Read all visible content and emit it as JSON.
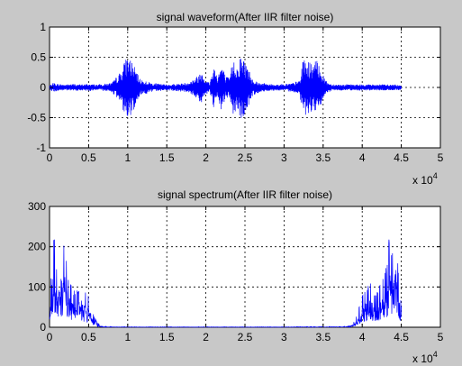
{
  "figure": {
    "background": "#c8c8c8",
    "axes_background": "#ffffff",
    "series_color": "#0000ff"
  },
  "chart_data": [
    {
      "type": "line",
      "title": "signal waveform(After IIR filter noise)",
      "xlabel": "",
      "ylabel": "",
      "xlim": [
        0,
        50000
      ],
      "ylim": [
        -1,
        1
      ],
      "xticks": [
        0,
        5000,
        10000,
        15000,
        20000,
        25000,
        30000,
        35000,
        40000,
        45000,
        50000
      ],
      "xtick_labels": [
        "0",
        "0.5",
        "1",
        "1.5",
        "2",
        "2.5",
        "3",
        "3.5",
        "4",
        "4.5",
        "5"
      ],
      "yticks": [
        -1,
        -0.5,
        0,
        0.5,
        1
      ],
      "ytick_labels": [
        "-1",
        "-0.5",
        "0",
        "0.5",
        "1"
      ],
      "x_multiplier": "x 10",
      "x_multiplier_exp": "4",
      "grid": true,
      "series": [
        {
          "x": [
            0,
            500,
            1000,
            2000,
            3000,
            4000,
            5000,
            6000,
            7000,
            8000,
            9000,
            9500,
            10000,
            10500,
            11000,
            11500,
            12000,
            13000,
            14000,
            15000,
            16000,
            17000,
            18000,
            19000,
            19500,
            20000,
            20500,
            21000,
            21500,
            22000,
            22500,
            23000,
            23500,
            24000,
            24500,
            25000,
            25500,
            26000,
            26500,
            27000,
            28000,
            29000,
            30000,
            31000,
            32000,
            32500,
            33000,
            33500,
            34000,
            34500,
            35000,
            35500,
            36000,
            37000,
            38000,
            39000,
            40000,
            41000,
            42000,
            43000,
            44000,
            45000
          ],
          "envelope": [
            0.03,
            0.08,
            0.06,
            0.05,
            0.06,
            0.05,
            0.06,
            0.05,
            0.06,
            0.08,
            0.25,
            0.4,
            0.55,
            0.45,
            0.3,
            0.15,
            0.12,
            0.08,
            0.06,
            0.05,
            0.06,
            0.07,
            0.1,
            0.2,
            0.3,
            0.12,
            0.08,
            0.38,
            0.2,
            0.4,
            0.2,
            0.15,
            0.5,
            0.35,
            0.55,
            0.45,
            0.3,
            0.15,
            0.1,
            0.08,
            0.06,
            0.05,
            0.06,
            0.07,
            0.12,
            0.5,
            0.45,
            0.4,
            0.45,
            0.42,
            0.2,
            0.1,
            0.06,
            0.05,
            0.05,
            0.05,
            0.05,
            0.05,
            0.05,
            0.05,
            0.05,
            0.04
          ]
        }
      ]
    },
    {
      "type": "line",
      "title": "signal spectrum(After IIR filter noise)",
      "xlabel": "",
      "ylabel": "",
      "xlim": [
        0,
        50000
      ],
      "ylim": [
        0,
        300
      ],
      "xticks": [
        0,
        5000,
        10000,
        15000,
        20000,
        25000,
        30000,
        35000,
        40000,
        45000,
        50000
      ],
      "xtick_labels": [
        "0",
        "0.5",
        "1",
        "1.5",
        "2",
        "2.5",
        "3",
        "3.5",
        "4",
        "4.5",
        "5"
      ],
      "yticks": [
        0,
        100,
        200,
        300
      ],
      "ytick_labels": [
        "0",
        "100",
        "200",
        "300"
      ],
      "x_multiplier": "x 10",
      "x_multiplier_exp": "4",
      "grid": true,
      "series": [
        {
          "x": [
            0,
            500,
            700,
            1000,
            1300,
            1600,
            2000,
            2300,
            2700,
            3000,
            3500,
            4000,
            4500,
            5000,
            5500,
            6000,
            6500,
            7000,
            10000,
            20000,
            30000,
            38000,
            38500,
            39000,
            39500,
            40000,
            40500,
            41000,
            41500,
            42000,
            42500,
            43000,
            43500,
            44000,
            44300,
            44600,
            45000
          ],
          "envelope": [
            60,
            265,
            200,
            150,
            250,
            180,
            235,
            140,
            120,
            95,
            90,
            115,
            100,
            90,
            40,
            15,
            5,
            2,
            1,
            1,
            1,
            2,
            5,
            15,
            40,
            90,
            100,
            115,
            90,
            95,
            120,
            140,
            235,
            180,
            250,
            150,
            60
          ]
        }
      ]
    }
  ]
}
